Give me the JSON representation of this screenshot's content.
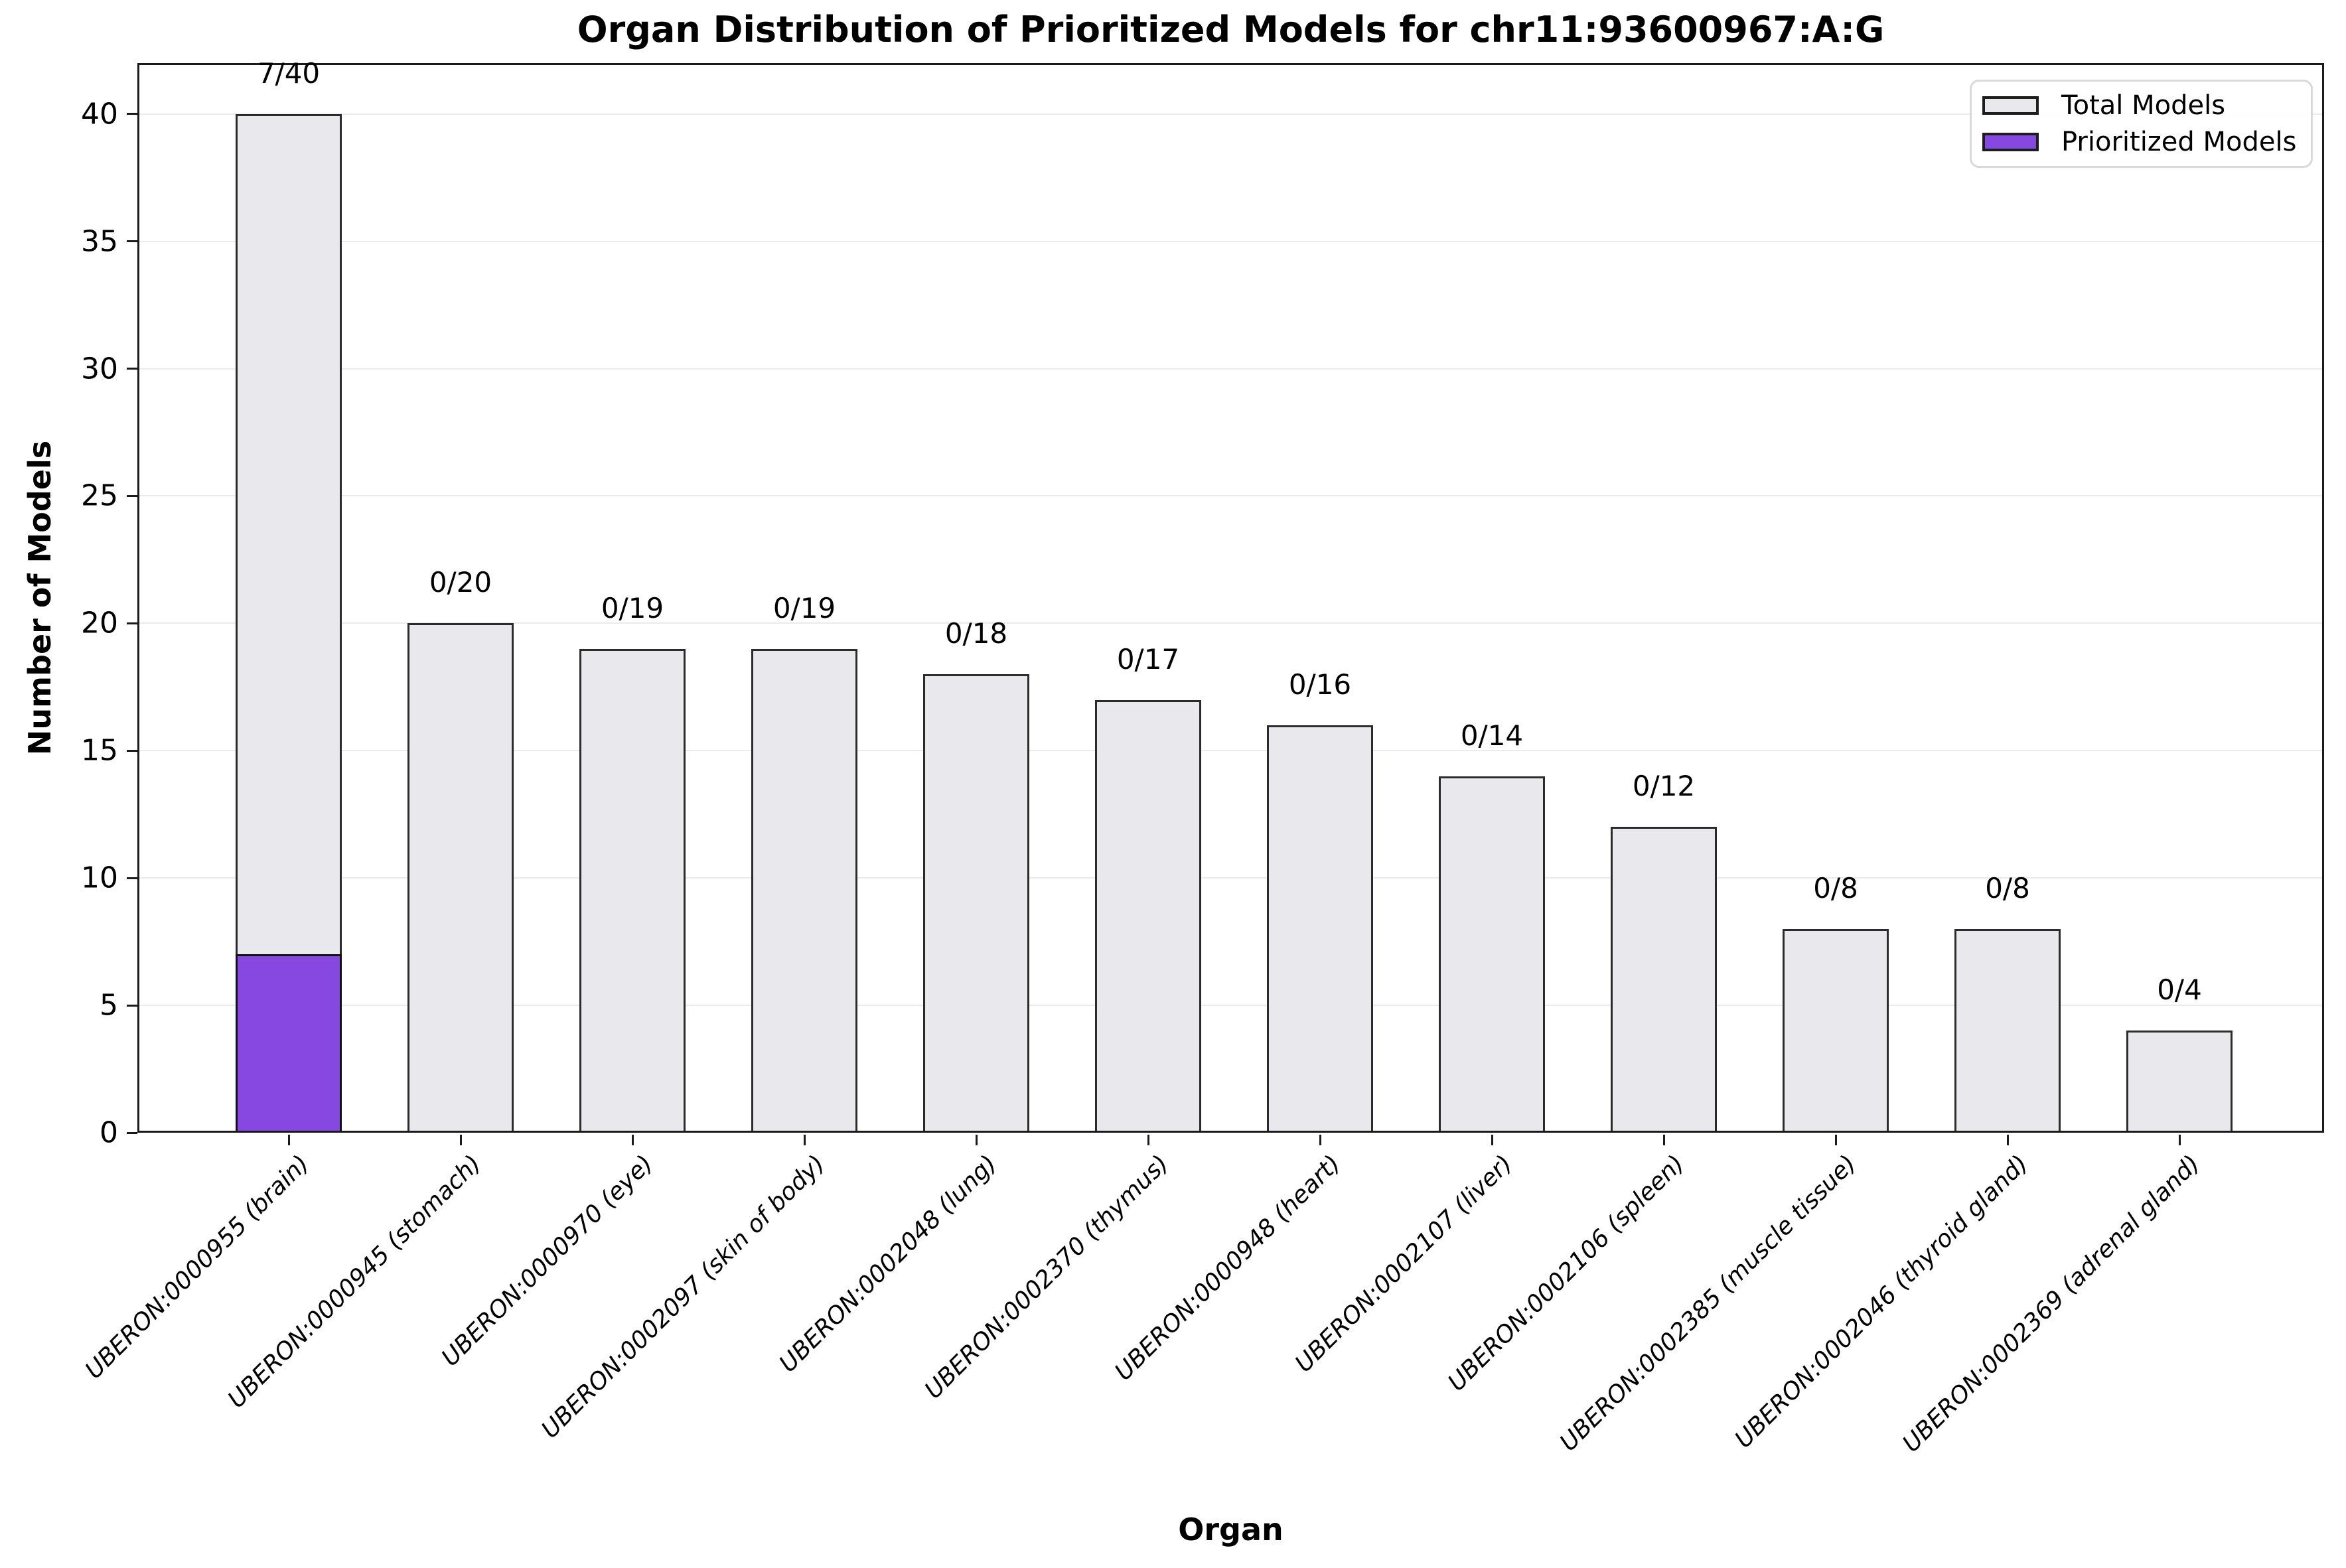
{
  "chart_data": {
    "type": "bar",
    "title": "Organ Distribution of Prioritized Models for chr11:93600967:A:G",
    "xlabel": "Organ",
    "ylabel": "Number of Models",
    "ylim": [
      0,
      42
    ],
    "yticks": [
      0,
      5,
      10,
      15,
      20,
      25,
      30,
      35,
      40
    ],
    "grid": true,
    "legend_position": "upper right",
    "categories": [
      "UBERON:0000955 (brain)",
      "UBERON:0000945 (stomach)",
      "UBERON:0000970 (eye)",
      "UBERON:0002097 (skin of body)",
      "UBERON:0002048 (lung)",
      "UBERON:0002370 (thymus)",
      "UBERON:0000948 (heart)",
      "UBERON:0002107 (liver)",
      "UBERON:0002106 (spleen)",
      "UBERON:0002385 (muscle tissue)",
      "UBERON:0002046 (thyroid gland)",
      "UBERON:0002369 (adrenal gland)"
    ],
    "series": [
      {
        "name": "Total Models",
        "color": "#e9e9ed",
        "edge_color": "#2b2b2b",
        "values": [
          40,
          20,
          19,
          19,
          18,
          17,
          16,
          14,
          12,
          8,
          8,
          4
        ]
      },
      {
        "name": "Prioritized Models",
        "color": "#8747e1",
        "edge_color": "#121212",
        "values": [
          7,
          0,
          0,
          0,
          0,
          0,
          0,
          0,
          0,
          0,
          0,
          0
        ]
      }
    ],
    "bar_labels": [
      "7/40",
      "0/20",
      "0/19",
      "0/19",
      "0/18",
      "0/17",
      "0/16",
      "0/14",
      "0/12",
      "0/8",
      "0/8",
      "0/4"
    ]
  }
}
